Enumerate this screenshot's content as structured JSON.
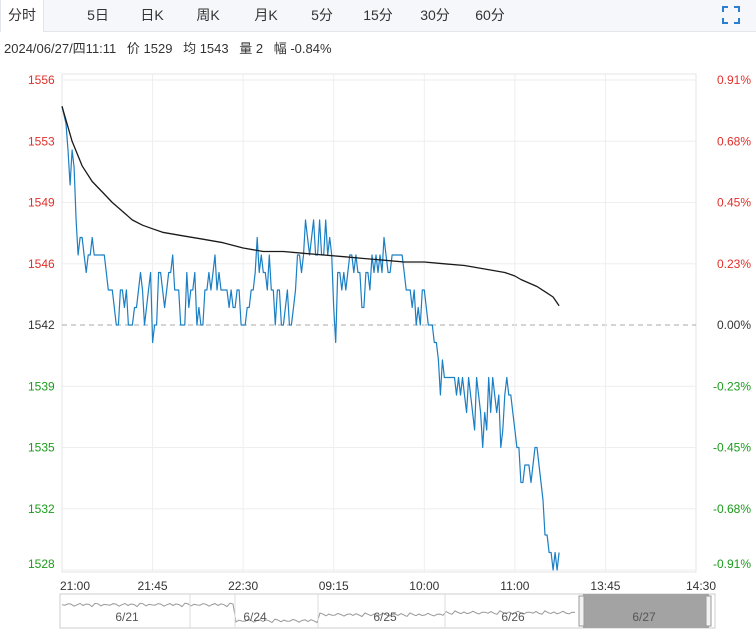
{
  "tabs": [
    {
      "label": "分时",
      "active": true
    },
    {
      "label": "5日",
      "active": false
    },
    {
      "label": "日K",
      "active": false
    },
    {
      "label": "周K",
      "active": false
    },
    {
      "label": "月K",
      "active": false
    },
    {
      "label": "5分",
      "active": false
    },
    {
      "label": "15分",
      "active": false
    },
    {
      "label": "30分",
      "active": false
    },
    {
      "label": "60分",
      "active": false
    }
  ],
  "fullscreen_icon": "expand-corners-icon",
  "info": {
    "datetime": "2024/06/27/四11:11",
    "price": "价 1529",
    "avg": "均 1543",
    "volume": "量 2",
    "change": "幅 -0.84%"
  },
  "colors": {
    "up": "#e0302a",
    "down": "#1c9b1c",
    "price_line": "#1b7fc4",
    "avg_line": "#1a1a1a",
    "grid": "#eeeeee",
    "baseline": "#aaaaaa"
  },
  "chart_data": {
    "type": "line",
    "ylim": [
      1528,
      1556
    ],
    "prev_close": 1542,
    "y_ticks": [
      "1556",
      "1553",
      "1549",
      "1546",
      "1542",
      "1539",
      "1535",
      "1532",
      "1528"
    ],
    "y_tick_values": [
      1556,
      1552.5,
      1549,
      1545.5,
      1542,
      1538.5,
      1535,
      1531.5,
      1528
    ],
    "pct_ticks": [
      "0.91%",
      "0.68%",
      "0.45%",
      "0.23%",
      "0.00%",
      "-0.23%",
      "-0.45%",
      "-0.68%",
      "-0.91%"
    ],
    "x_ticks": [
      "21:00",
      "21:45",
      "22:30",
      "09:15",
      "10:00",
      "11:00",
      "13:45",
      "14:30"
    ],
    "x_tick_index": [
      0,
      45,
      90,
      135,
      180,
      225,
      270,
      315
    ],
    "x_total": 315,
    "series": [
      {
        "key": "price",
        "x": [
          0,
          2,
          3,
          4,
          5,
          6,
          7,
          8,
          9,
          10,
          11,
          12,
          13,
          14,
          15,
          16,
          17,
          18,
          19,
          20,
          21,
          22,
          23,
          24,
          25,
          26,
          27,
          28,
          29,
          30,
          31,
          32,
          33,
          34,
          35,
          36,
          37,
          38,
          39,
          40,
          41,
          42,
          43,
          44,
          45,
          46,
          47,
          48,
          49,
          50,
          51,
          52,
          53,
          54,
          55,
          56,
          57,
          58,
          59,
          60,
          61,
          62,
          63,
          64,
          65,
          66,
          67,
          68,
          69,
          70,
          71,
          72,
          73,
          74,
          75,
          76,
          77,
          78,
          79,
          80,
          81,
          82,
          83,
          84,
          85,
          86,
          87,
          88,
          89,
          90,
          91,
          92,
          93,
          94,
          95,
          96,
          97,
          98,
          99,
          100,
          101,
          102,
          103,
          104,
          105,
          106,
          107,
          108,
          109,
          110,
          111,
          112,
          113,
          114,
          115,
          116,
          117,
          118,
          119,
          120,
          121,
          122,
          123,
          124,
          125,
          126,
          127,
          128,
          129,
          130,
          131,
          132,
          133,
          134,
          135,
          136,
          137,
          138,
          139,
          140,
          141,
          142,
          143,
          144,
          145,
          146,
          147,
          148,
          149,
          150,
          151,
          152,
          153,
          154,
          155,
          156,
          157,
          158,
          159,
          160,
          161,
          162,
          163,
          164,
          165,
          166,
          167,
          168,
          169,
          170,
          171,
          172,
          173,
          174,
          175,
          176,
          177,
          178,
          179,
          180,
          181,
          182,
          183,
          184,
          185,
          186,
          187,
          188,
          189,
          190,
          191,
          192,
          193,
          194,
          195,
          196,
          197,
          198,
          199,
          200,
          201,
          202,
          203,
          204,
          205,
          206,
          207,
          208,
          209,
          210,
          211,
          212,
          213,
          214,
          215,
          216,
          217,
          218,
          219,
          220,
          221,
          222,
          223,
          224,
          225,
          226,
          227,
          228,
          229,
          230,
          231,
          232,
          233,
          234,
          235,
          236,
          237,
          238,
          239,
          240,
          241,
          242,
          243,
          244,
          245,
          246,
          247
        ],
        "y": [
          1554.5,
          1553.5,
          1552,
          1550,
          1552,
          1551,
          1548,
          1546,
          1547,
          1547,
          1546,
          1545,
          1546,
          1546,
          1547,
          1546,
          1546,
          1546,
          1546,
          1546,
          1546,
          1545,
          1544,
          1544,
          1544,
          1543,
          1542,
          1542,
          1544,
          1544,
          1543,
          1544,
          1542,
          1542,
          1542,
          1543,
          1543,
          1544,
          1545,
          1544,
          1542,
          1543,
          1544,
          1545,
          1541,
          1542,
          1542,
          1545,
          1545,
          1544,
          1543,
          1544,
          1545,
          1545,
          1546,
          1544,
          1544,
          1544,
          1542,
          1542,
          1542,
          1545,
          1543,
          1544,
          1544,
          1545,
          1542,
          1543,
          1542,
          1542,
          1544,
          1544,
          1545,
          1544,
          1545,
          1546,
          1544,
          1545,
          1544,
          1544,
          1544,
          1544,
          1543,
          1544,
          1543,
          1543,
          1544,
          1544,
          1542,
          1542,
          1542,
          1543,
          1543,
          1544,
          1544,
          1545,
          1547,
          1545,
          1546,
          1545,
          1545,
          1544,
          1546,
          1544,
          1544,
          1542,
          1544,
          1544,
          1542,
          1542,
          1543,
          1544,
          1542,
          1542,
          1543,
          1544,
          1546,
          1546,
          1545,
          1546,
          1548,
          1547,
          1546,
          1547,
          1548,
          1546,
          1546,
          1548,
          1546,
          1546,
          1548,
          1546,
          1547,
          1546,
          1543,
          1541,
          1545,
          1545,
          1544,
          1545,
          1544,
          1545,
          1546,
          1546,
          1545,
          1546,
          1545,
          1545,
          1543,
          1543,
          1545,
          1545,
          1544,
          1546,
          1545,
          1546,
          1545,
          1546,
          1545,
          1547,
          1546,
          1545,
          1545,
          1546,
          1546,
          1546,
          1546,
          1546,
          1546,
          1545,
          1544,
          1544,
          1544,
          1543,
          1544,
          1542,
          1543,
          1542,
          1544,
          1544,
          1543,
          1542,
          1542,
          1542,
          1541,
          1541,
          1540,
          1538,
          1540,
          1539,
          1539,
          1539,
          1539,
          1539,
          1539,
          1538,
          1539,
          1538,
          1539,
          1538,
          1537,
          1539,
          1538,
          1537,
          1536,
          1539,
          1538,
          1537,
          1535,
          1537,
          1536,
          1539,
          1537,
          1539,
          1538,
          1537,
          1538,
          1535,
          1536,
          1538,
          1539,
          1538,
          1538,
          1537,
          1536,
          1535,
          1535,
          1533,
          1533,
          1534,
          1534,
          1534,
          1533,
          1534,
          1535,
          1535,
          1534,
          1533,
          1532,
          1530,
          1530,
          1529,
          1529,
          1528,
          1529,
          1528,
          1529
        ]
      },
      {
        "key": "avg",
        "x": [
          0,
          5,
          10,
          15,
          20,
          25,
          30,
          35,
          40,
          45,
          50,
          60,
          70,
          80,
          90,
          100,
          110,
          120,
          130,
          140,
          150,
          160,
          170,
          180,
          190,
          200,
          210,
          220,
          225,
          228,
          232,
          236,
          240,
          244,
          247
        ],
        "y": [
          1554.5,
          1552.5,
          1551.1,
          1550.2,
          1549.6,
          1549,
          1548.5,
          1548,
          1547.7,
          1547.5,
          1547.3,
          1547.1,
          1546.9,
          1546.7,
          1546.4,
          1546.2,
          1546.2,
          1546.1,
          1546,
          1545.9,
          1545.8,
          1545.7,
          1545.6,
          1545.6,
          1545.5,
          1545.4,
          1545.2,
          1545,
          1544.8,
          1544.6,
          1544.4,
          1544.2,
          1543.9,
          1543.6,
          1543.1
        ]
      }
    ]
  },
  "navigator": {
    "dates": [
      "6/21",
      "6/24",
      "6/25",
      "6/26",
      "6/27"
    ]
  }
}
